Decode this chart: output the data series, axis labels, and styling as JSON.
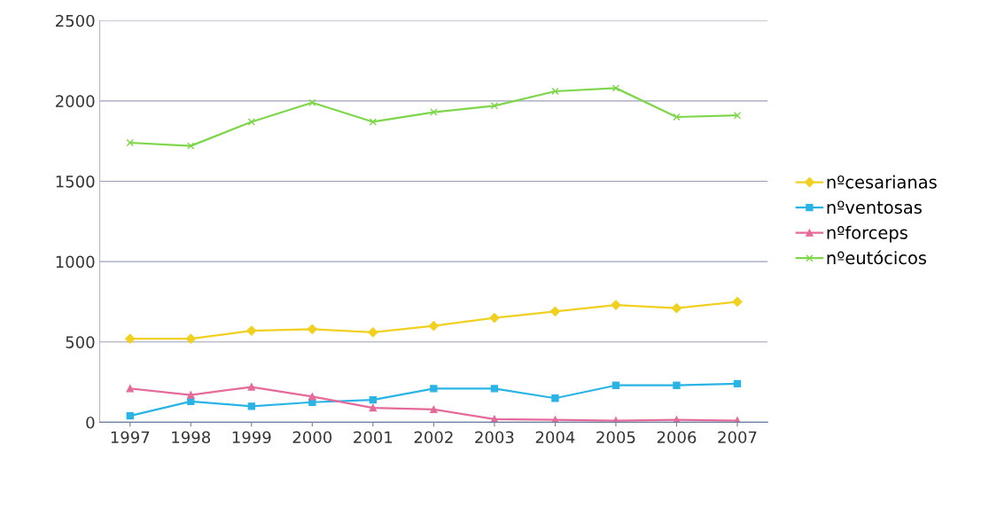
{
  "chart_data": {
    "type": "line",
    "categories": [
      "1997",
      "1998",
      "1999",
      "2000",
      "2001",
      "2002",
      "2003",
      "2004",
      "2005",
      "2006",
      "2007"
    ],
    "series": [
      {
        "name": "nºcesarianas",
        "color": "#f0d020",
        "marker": "diamond",
        "values": [
          520,
          520,
          570,
          580,
          560,
          600,
          650,
          690,
          730,
          710,
          750
        ]
      },
      {
        "name": "nºventosas",
        "color": "#2ab4e6",
        "marker": "square",
        "values": [
          40,
          130,
          100,
          125,
          140,
          210,
          210,
          150,
          230,
          230,
          240
        ]
      },
      {
        "name": "nºforceps",
        "color": "#e56a9a",
        "marker": "triangle",
        "values": [
          210,
          170,
          220,
          160,
          90,
          80,
          20,
          15,
          10,
          15,
          10
        ]
      },
      {
        "name": "nºeutócicos",
        "color": "#7ed64a",
        "marker": "cross",
        "values": [
          1740,
          1720,
          1870,
          1990,
          1870,
          1930,
          1970,
          2060,
          2080,
          1900,
          1910
        ]
      }
    ],
    "ylim": [
      0,
      2500
    ],
    "yticks": [
      0,
      500,
      1000,
      1500,
      2000,
      2500
    ],
    "grid": "y",
    "legend": "right",
    "line_style": "solid"
  }
}
